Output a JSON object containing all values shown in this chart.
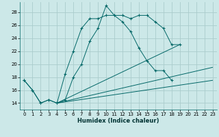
{
  "background_color": "#cce8e8",
  "grid_color": "#aacccc",
  "line_color": "#006666",
  "xlabel": "Humidex (Indice chaleur)",
  "xlim": [
    -0.5,
    23.5
  ],
  "ylim": [
    13,
    29.5
  ],
  "yticks": [
    14,
    16,
    18,
    20,
    22,
    24,
    26,
    28
  ],
  "xticks": [
    0,
    1,
    2,
    3,
    4,
    5,
    6,
    7,
    8,
    9,
    10,
    11,
    12,
    13,
    14,
    15,
    16,
    17,
    18,
    19,
    20,
    21,
    22,
    23
  ],
  "series_main": [
    {
      "x": [
        0,
        1,
        2,
        3,
        4,
        5,
        6,
        7,
        8,
        9,
        10,
        11,
        12,
        13,
        14,
        15,
        16,
        17,
        18,
        19,
        20,
        21,
        22,
        23
      ],
      "y": [
        17.5,
        16.0,
        14.0,
        14.5,
        14.0,
        18.5,
        22.0,
        25.5,
        27.0,
        27.0,
        27.5,
        27.5,
        26.5,
        25.0,
        22.5,
        20.5,
        19.0,
        19.0,
        17.5,
        null,
        null,
        null,
        null,
        null
      ]
    },
    {
      "x": [
        0,
        1,
        2,
        3,
        4,
        5,
        6,
        7,
        8,
        9,
        10,
        11,
        12,
        13,
        14,
        15,
        16,
        17,
        18,
        19,
        20,
        21,
        22,
        23
      ],
      "y": [
        17.5,
        16.0,
        14.0,
        14.5,
        14.0,
        14.5,
        18.0,
        20.0,
        23.5,
        25.5,
        29.0,
        27.5,
        27.5,
        27.0,
        27.5,
        27.5,
        26.5,
        25.5,
        23.0,
        23.0,
        null,
        null,
        null,
        null
      ]
    }
  ],
  "series_lines": [
    {
      "x": [
        4,
        23
      ],
      "y": [
        14.0,
        17.5
      ]
    },
    {
      "x": [
        4,
        23
      ],
      "y": [
        14.0,
        19.5
      ]
    },
    {
      "x": [
        4,
        19
      ],
      "y": [
        14.0,
        23.0
      ]
    }
  ]
}
